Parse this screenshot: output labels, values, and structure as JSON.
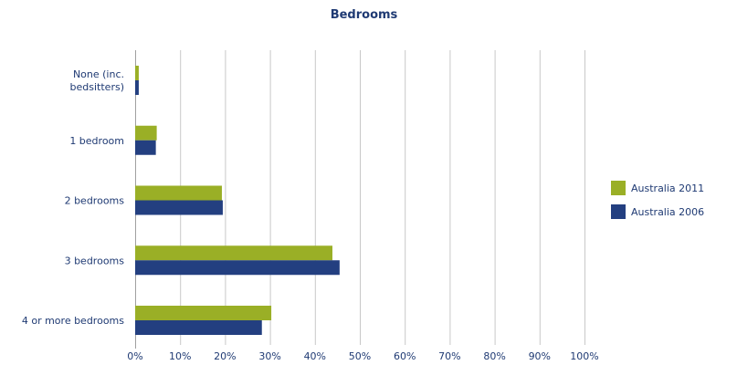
{
  "chart_data": {
    "type": "bar",
    "orientation": "horizontal",
    "title": "Bedrooms",
    "categories": [
      "None (inc. bedsitters)",
      "1 bedroom",
      "2 bedrooms",
      "3 bedrooms",
      "4 or more bedrooms"
    ],
    "category_lines": [
      [
        "None (inc.",
        "bedsitters)"
      ],
      [
        "1 bedroom"
      ],
      [
        "2 bedrooms"
      ],
      [
        "3 bedrooms"
      ],
      [
        "4 or more bedrooms"
      ]
    ],
    "series": [
      {
        "name": "Australia 2011",
        "color": "#9aaf26",
        "values": [
          0.8,
          4.8,
          19.3,
          43.9,
          30.3
        ]
      },
      {
        "name": "Australia 2006",
        "color": "#233f80",
        "values": [
          0.8,
          4.6,
          19.5,
          45.5,
          28.2
        ]
      }
    ],
    "xlim": [
      0,
      100
    ],
    "xticks": [
      0,
      10,
      20,
      30,
      40,
      50,
      60,
      70,
      80,
      90,
      100
    ],
    "tick_suffix": "%",
    "grid": true,
    "legend_position": "right"
  }
}
